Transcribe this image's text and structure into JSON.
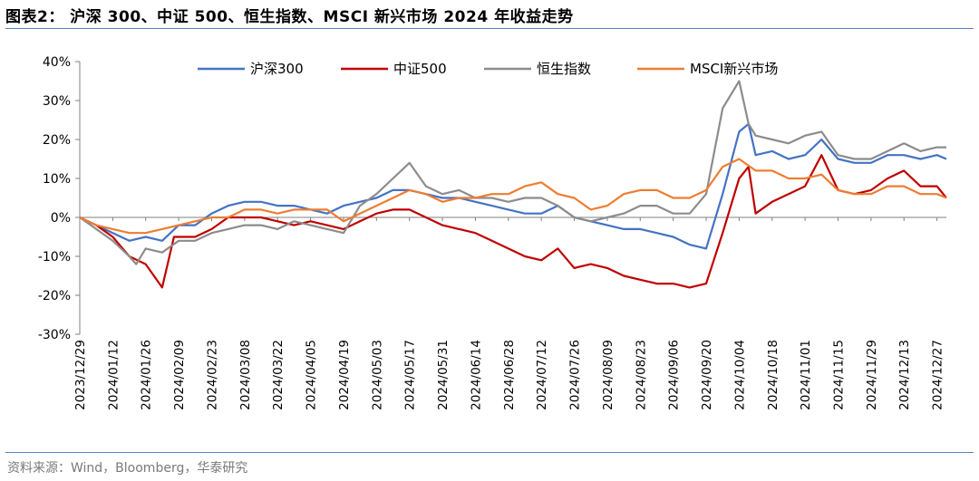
{
  "header": {
    "title": "图表2： 沪深 300、中证 500、恒生指数、MSCI 新兴市场 2024 年收益走势"
  },
  "footer": {
    "source": "资料来源：Wind，Bloomberg，华泰研究"
  },
  "colors": {
    "rule": "#5b7fbf",
    "series": [
      "#4472C4",
      "#C00000",
      "#8C8C8C",
      "#ED7D31"
    ]
  },
  "chart_data": {
    "type": "line",
    "title": "",
    "xlabel": "",
    "ylabel": "",
    "ylim": [
      -0.3,
      0.4
    ],
    "y_ticks": [
      -0.3,
      -0.2,
      -0.1,
      0.0,
      0.1,
      0.2,
      0.3,
      0.4
    ],
    "y_tick_labels": [
      "-30%",
      "-20%",
      "-10%",
      "0%",
      "10%",
      "20%",
      "30%",
      "40%"
    ],
    "x_range": [
      "2023-12-29",
      "2024-12-31"
    ],
    "x_tick_labels": [
      "2023/12/29",
      "2024/01/12",
      "2024/01/26",
      "2024/02/09",
      "2024/02/23",
      "2024/03/08",
      "2024/03/22",
      "2024/04/05",
      "2024/04/19",
      "2024/05/03",
      "2024/05/17",
      "2024/05/31",
      "2024/06/14",
      "2024/06/28",
      "2024/07/12",
      "2024/07/26",
      "2024/08/09",
      "2024/08/23",
      "2024/09/06",
      "2024/09/20",
      "2024/10/04",
      "2024/10/18",
      "2024/11/01",
      "2024/11/15",
      "2024/11/29",
      "2024/12/13",
      "2024/12/27"
    ],
    "grid": false,
    "legend_position": "top",
    "series": [
      {
        "name": "沪深300",
        "points": [
          [
            "2023-12-29",
            0.0
          ],
          [
            "2024-01-05",
            -0.02
          ],
          [
            "2024-01-12",
            -0.04
          ],
          [
            "2024-01-19",
            -0.06
          ],
          [
            "2024-01-26",
            -0.05
          ],
          [
            "2024-02-02",
            -0.06
          ],
          [
            "2024-02-09",
            -0.02
          ],
          [
            "2024-02-16",
            -0.02
          ],
          [
            "2024-02-23",
            0.01
          ],
          [
            "2024-03-01",
            0.03
          ],
          [
            "2024-03-08",
            0.04
          ],
          [
            "2024-03-15",
            0.04
          ],
          [
            "2024-03-22",
            0.03
          ],
          [
            "2024-03-29",
            0.03
          ],
          [
            "2024-04-05",
            0.02
          ],
          [
            "2024-04-12",
            0.01
          ],
          [
            "2024-04-19",
            0.03
          ],
          [
            "2024-04-26",
            0.04
          ],
          [
            "2024-05-03",
            0.05
          ],
          [
            "2024-05-10",
            0.07
          ],
          [
            "2024-05-17",
            0.07
          ],
          [
            "2024-05-24",
            0.06
          ],
          [
            "2024-05-31",
            0.05
          ],
          [
            "2024-06-07",
            0.05
          ],
          [
            "2024-06-14",
            0.04
          ],
          [
            "2024-06-21",
            0.03
          ],
          [
            "2024-06-28",
            0.02
          ],
          [
            "2024-07-05",
            0.01
          ],
          [
            "2024-07-12",
            0.01
          ],
          [
            "2024-07-19",
            0.03
          ],
          [
            "2024-07-26",
            0.0
          ],
          [
            "2024-08-02",
            -0.01
          ],
          [
            "2024-08-09",
            -0.02
          ],
          [
            "2024-08-16",
            -0.03
          ],
          [
            "2024-08-23",
            -0.03
          ],
          [
            "2024-08-30",
            -0.04
          ],
          [
            "2024-09-06",
            -0.05
          ],
          [
            "2024-09-13",
            -0.07
          ],
          [
            "2024-09-20",
            -0.08
          ],
          [
            "2024-09-27",
            0.06
          ],
          [
            "2024-10-04",
            0.22
          ],
          [
            "2024-10-08",
            0.24
          ],
          [
            "2024-10-11",
            0.16
          ],
          [
            "2024-10-18",
            0.17
          ],
          [
            "2024-10-25",
            0.15
          ],
          [
            "2024-11-01",
            0.16
          ],
          [
            "2024-11-08",
            0.2
          ],
          [
            "2024-11-15",
            0.15
          ],
          [
            "2024-11-22",
            0.14
          ],
          [
            "2024-11-29",
            0.14
          ],
          [
            "2024-12-06",
            0.16
          ],
          [
            "2024-12-13",
            0.16
          ],
          [
            "2024-12-20",
            0.15
          ],
          [
            "2024-12-27",
            0.16
          ],
          [
            "2024-12-31",
            0.15
          ]
        ]
      },
      {
        "name": "中证500",
        "points": [
          [
            "2023-12-29",
            0.0
          ],
          [
            "2024-01-05",
            -0.02
          ],
          [
            "2024-01-12",
            -0.05
          ],
          [
            "2024-01-19",
            -0.1
          ],
          [
            "2024-01-26",
            -0.12
          ],
          [
            "2024-02-02",
            -0.18
          ],
          [
            "2024-02-07",
            -0.05
          ],
          [
            "2024-02-16",
            -0.05
          ],
          [
            "2024-02-23",
            -0.03
          ],
          [
            "2024-03-01",
            0.0
          ],
          [
            "2024-03-08",
            0.0
          ],
          [
            "2024-03-15",
            0.0
          ],
          [
            "2024-03-22",
            -0.01
          ],
          [
            "2024-03-29",
            -0.02
          ],
          [
            "2024-04-05",
            -0.01
          ],
          [
            "2024-04-12",
            -0.02
          ],
          [
            "2024-04-19",
            -0.03
          ],
          [
            "2024-04-26",
            -0.01
          ],
          [
            "2024-05-03",
            0.01
          ],
          [
            "2024-05-10",
            0.02
          ],
          [
            "2024-05-17",
            0.02
          ],
          [
            "2024-05-24",
            0.0
          ],
          [
            "2024-05-31",
            -0.02
          ],
          [
            "2024-06-07",
            -0.03
          ],
          [
            "2024-06-14",
            -0.04
          ],
          [
            "2024-06-21",
            -0.06
          ],
          [
            "2024-06-28",
            -0.08
          ],
          [
            "2024-07-05",
            -0.1
          ],
          [
            "2024-07-12",
            -0.11
          ],
          [
            "2024-07-19",
            -0.08
          ],
          [
            "2024-07-26",
            -0.13
          ],
          [
            "2024-08-02",
            -0.12
          ],
          [
            "2024-08-09",
            -0.13
          ],
          [
            "2024-08-16",
            -0.15
          ],
          [
            "2024-08-23",
            -0.16
          ],
          [
            "2024-08-30",
            -0.17
          ],
          [
            "2024-09-06",
            -0.17
          ],
          [
            "2024-09-13",
            -0.18
          ],
          [
            "2024-09-20",
            -0.17
          ],
          [
            "2024-09-27",
            -0.04
          ],
          [
            "2024-10-04",
            0.1
          ],
          [
            "2024-10-08",
            0.13
          ],
          [
            "2024-10-11",
            0.01
          ],
          [
            "2024-10-18",
            0.04
          ],
          [
            "2024-10-25",
            0.06
          ],
          [
            "2024-11-01",
            0.08
          ],
          [
            "2024-11-08",
            0.16
          ],
          [
            "2024-11-15",
            0.07
          ],
          [
            "2024-11-22",
            0.06
          ],
          [
            "2024-11-29",
            0.07
          ],
          [
            "2024-12-06",
            0.1
          ],
          [
            "2024-12-13",
            0.12
          ],
          [
            "2024-12-20",
            0.08
          ],
          [
            "2024-12-27",
            0.08
          ],
          [
            "2024-12-31",
            0.05
          ]
        ]
      },
      {
        "name": "恒生指数",
        "points": [
          [
            "2023-12-29",
            0.0
          ],
          [
            "2024-01-05",
            -0.03
          ],
          [
            "2024-01-12",
            -0.06
          ],
          [
            "2024-01-19",
            -0.1
          ],
          [
            "2024-01-22",
            -0.12
          ],
          [
            "2024-01-26",
            -0.08
          ],
          [
            "2024-02-02",
            -0.09
          ],
          [
            "2024-02-09",
            -0.06
          ],
          [
            "2024-02-16",
            -0.06
          ],
          [
            "2024-02-23",
            -0.04
          ],
          [
            "2024-03-01",
            -0.03
          ],
          [
            "2024-03-08",
            -0.02
          ],
          [
            "2024-03-15",
            -0.02
          ],
          [
            "2024-03-22",
            -0.03
          ],
          [
            "2024-03-29",
            -0.01
          ],
          [
            "2024-04-05",
            -0.02
          ],
          [
            "2024-04-12",
            -0.03
          ],
          [
            "2024-04-19",
            -0.04
          ],
          [
            "2024-04-26",
            0.03
          ],
          [
            "2024-05-03",
            0.06
          ],
          [
            "2024-05-10",
            0.1
          ],
          [
            "2024-05-17",
            0.14
          ],
          [
            "2024-05-24",
            0.08
          ],
          [
            "2024-05-31",
            0.06
          ],
          [
            "2024-06-07",
            0.07
          ],
          [
            "2024-06-14",
            0.05
          ],
          [
            "2024-06-21",
            0.05
          ],
          [
            "2024-06-28",
            0.04
          ],
          [
            "2024-07-05",
            0.05
          ],
          [
            "2024-07-12",
            0.05
          ],
          [
            "2024-07-19",
            0.03
          ],
          [
            "2024-07-26",
            0.0
          ],
          [
            "2024-08-02",
            -0.01
          ],
          [
            "2024-08-09",
            0.0
          ],
          [
            "2024-08-16",
            0.01
          ],
          [
            "2024-08-23",
            0.03
          ],
          [
            "2024-08-30",
            0.03
          ],
          [
            "2024-09-06",
            0.01
          ],
          [
            "2024-09-13",
            0.01
          ],
          [
            "2024-09-20",
            0.06
          ],
          [
            "2024-09-27",
            0.28
          ],
          [
            "2024-10-04",
            0.35
          ],
          [
            "2024-10-08",
            0.24
          ],
          [
            "2024-10-11",
            0.21
          ],
          [
            "2024-10-18",
            0.2
          ],
          [
            "2024-10-25",
            0.19
          ],
          [
            "2024-11-01",
            0.21
          ],
          [
            "2024-11-08",
            0.22
          ],
          [
            "2024-11-15",
            0.16
          ],
          [
            "2024-11-22",
            0.15
          ],
          [
            "2024-11-29",
            0.15
          ],
          [
            "2024-12-06",
            0.17
          ],
          [
            "2024-12-13",
            0.19
          ],
          [
            "2024-12-20",
            0.17
          ],
          [
            "2024-12-27",
            0.18
          ],
          [
            "2024-12-31",
            0.18
          ]
        ]
      },
      {
        "name": "MSCI新兴市场",
        "points": [
          [
            "2023-12-29",
            0.0
          ],
          [
            "2024-01-05",
            -0.02
          ],
          [
            "2024-01-12",
            -0.03
          ],
          [
            "2024-01-19",
            -0.04
          ],
          [
            "2024-01-26",
            -0.04
          ],
          [
            "2024-02-02",
            -0.03
          ],
          [
            "2024-02-09",
            -0.02
          ],
          [
            "2024-02-16",
            -0.01
          ],
          [
            "2024-02-23",
            0.0
          ],
          [
            "2024-03-01",
            0.0
          ],
          [
            "2024-03-08",
            0.02
          ],
          [
            "2024-03-15",
            0.02
          ],
          [
            "2024-03-22",
            0.01
          ],
          [
            "2024-03-29",
            0.02
          ],
          [
            "2024-04-05",
            0.02
          ],
          [
            "2024-04-12",
            0.02
          ],
          [
            "2024-04-19",
            -0.01
          ],
          [
            "2024-04-26",
            0.01
          ],
          [
            "2024-05-03",
            0.03
          ],
          [
            "2024-05-10",
            0.05
          ],
          [
            "2024-05-17",
            0.07
          ],
          [
            "2024-05-24",
            0.06
          ],
          [
            "2024-05-31",
            0.04
          ],
          [
            "2024-06-07",
            0.05
          ],
          [
            "2024-06-14",
            0.05
          ],
          [
            "2024-06-21",
            0.06
          ],
          [
            "2024-06-28",
            0.06
          ],
          [
            "2024-07-05",
            0.08
          ],
          [
            "2024-07-12",
            0.09
          ],
          [
            "2024-07-19",
            0.06
          ],
          [
            "2024-07-26",
            0.05
          ],
          [
            "2024-08-02",
            0.02
          ],
          [
            "2024-08-09",
            0.03
          ],
          [
            "2024-08-16",
            0.06
          ],
          [
            "2024-08-23",
            0.07
          ],
          [
            "2024-08-30",
            0.07
          ],
          [
            "2024-09-06",
            0.05
          ],
          [
            "2024-09-13",
            0.05
          ],
          [
            "2024-09-20",
            0.07
          ],
          [
            "2024-09-27",
            0.13
          ],
          [
            "2024-10-04",
            0.15
          ],
          [
            "2024-10-11",
            0.12
          ],
          [
            "2024-10-18",
            0.12
          ],
          [
            "2024-10-25",
            0.1
          ],
          [
            "2024-11-01",
            0.1
          ],
          [
            "2024-11-08",
            0.11
          ],
          [
            "2024-11-15",
            0.07
          ],
          [
            "2024-11-22",
            0.06
          ],
          [
            "2024-11-29",
            0.06
          ],
          [
            "2024-12-06",
            0.08
          ],
          [
            "2024-12-13",
            0.08
          ],
          [
            "2024-12-20",
            0.06
          ],
          [
            "2024-12-27",
            0.06
          ],
          [
            "2024-12-31",
            0.05
          ]
        ]
      }
    ]
  }
}
